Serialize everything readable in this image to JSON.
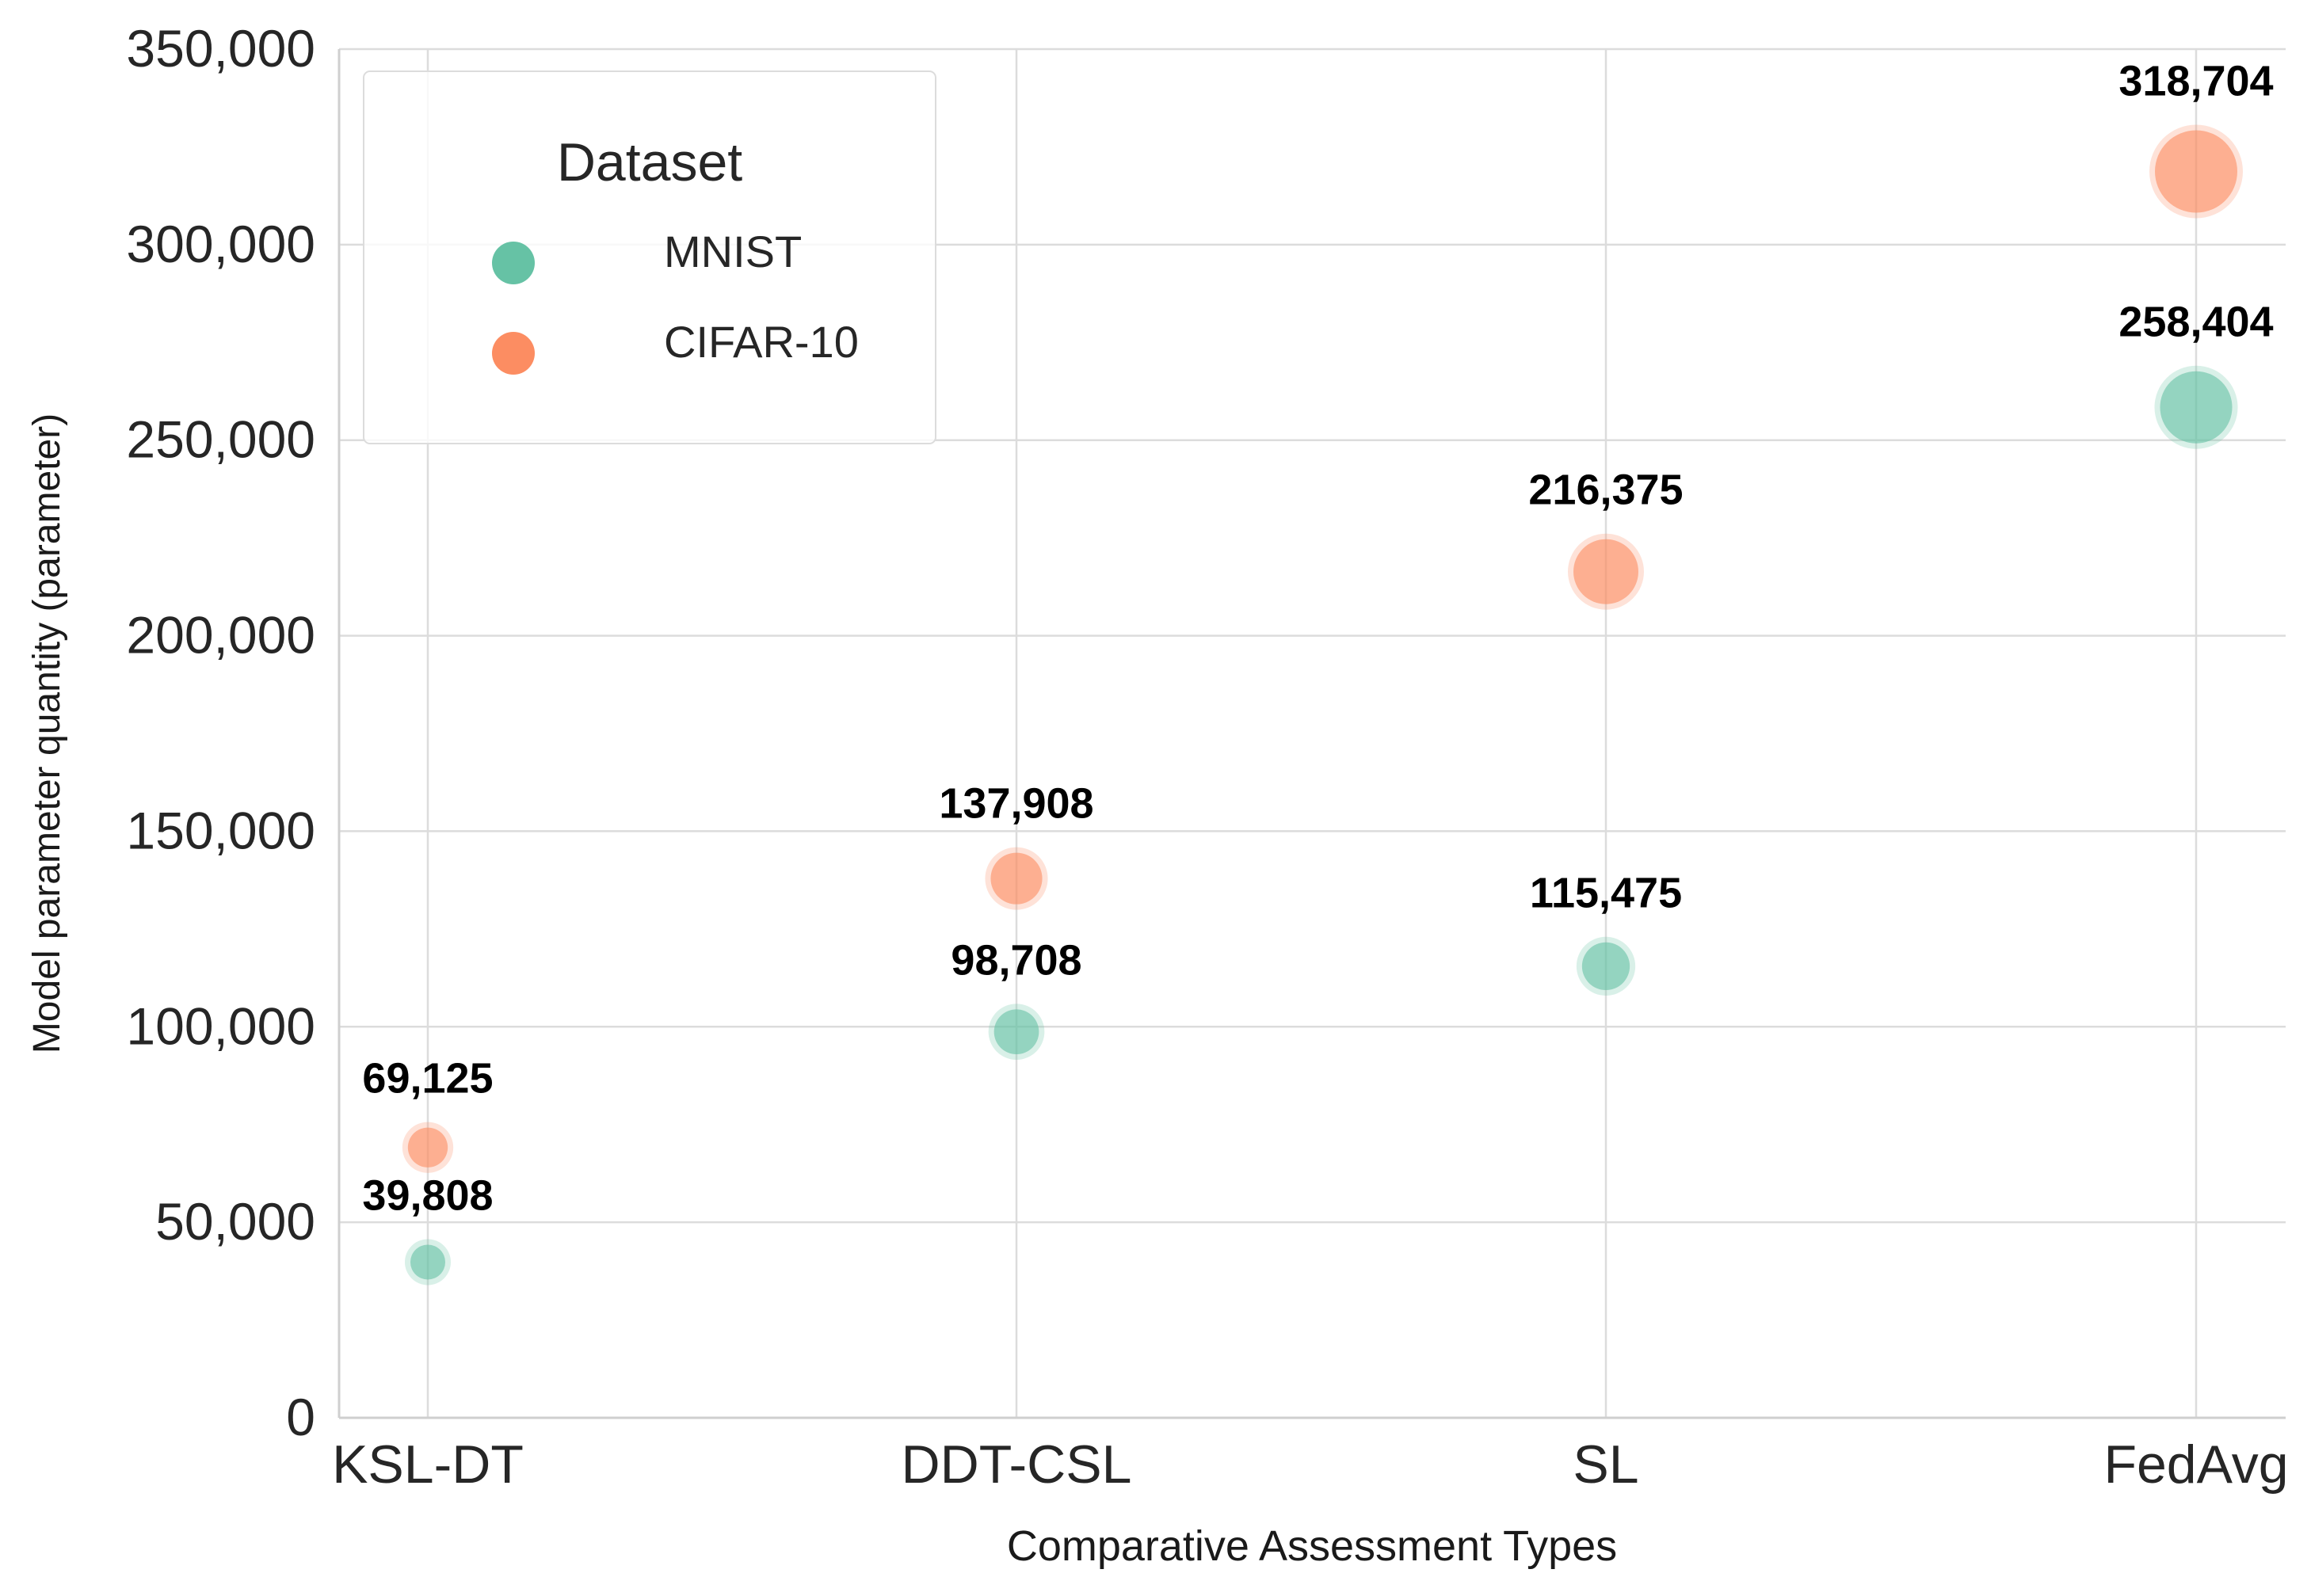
{
  "chart_data": {
    "type": "scatter",
    "title": "",
    "xlabel": "Comparative Assessment Types",
    "ylabel": "Model parameter quantity (parameter)",
    "categories": [
      "KSL-DT",
      "DDT-CSL",
      "SL",
      "FedAvg"
    ],
    "ylim": [
      0,
      350000
    ],
    "yticks": [
      0,
      50000,
      100000,
      150000,
      200000,
      250000,
      300000,
      350000
    ],
    "ytick_labels": [
      "0",
      "50,000",
      "100,000",
      "150,000",
      "200,000",
      "250,000",
      "300,000",
      "350,000"
    ],
    "grid": true,
    "legend": {
      "title": "Dataset",
      "position": "top-left",
      "entries": [
        {
          "name": "MNIST",
          "color": "#66c2a5"
        },
        {
          "name": "CIFAR-10",
          "color": "#fc8d62"
        }
      ]
    },
    "series": [
      {
        "name": "MNIST",
        "color": "#66c2a5",
        "values": [
          39808,
          98708,
          115475,
          258404
        ],
        "labels": [
          "39,808",
          "98,708",
          "115,475",
          "258,404"
        ]
      },
      {
        "name": "CIFAR-10",
        "color": "#fc8d62",
        "values": [
          69125,
          137908,
          216375,
          318704
        ],
        "labels": [
          "69,125",
          "137,908",
          "216,375",
          "318,704"
        ]
      }
    ]
  }
}
